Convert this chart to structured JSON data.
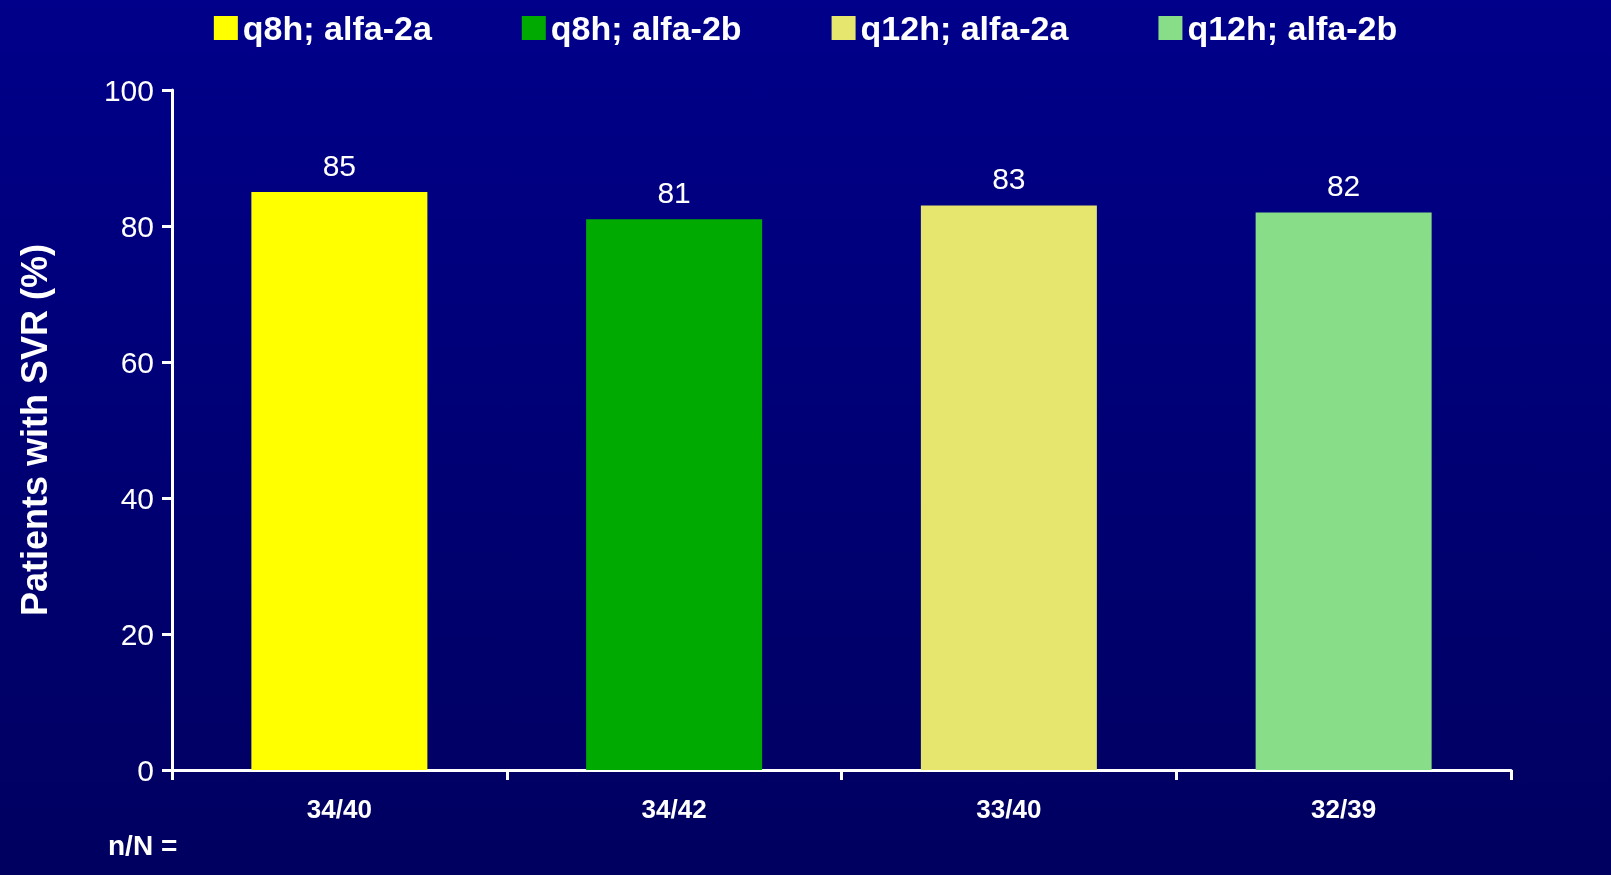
{
  "chart_data": {
    "type": "bar",
    "ylabel": "Patients with SVR (%)",
    "categories": [
      "34/40",
      "34/42",
      "33/40",
      "32/39"
    ],
    "series": [
      {
        "name": "q8h; alfa-2a",
        "color": "#ffff00",
        "values": [
          85,
          null,
          null,
          null
        ]
      },
      {
        "name": "q8h; alfa-2b",
        "color": "#00aa00",
        "values": [
          null,
          81,
          null,
          null
        ]
      },
      {
        "name": "q12h; alfa-2a",
        "color": "#e6e66e",
        "values": [
          null,
          null,
          83,
          null
        ]
      },
      {
        "name": "q12h; alfa-2b",
        "color": "#88dd88",
        "values": [
          null,
          null,
          null,
          82
        ]
      }
    ],
    "ylim": [
      0,
      100
    ],
    "yticks": [
      0,
      20,
      40,
      60,
      80,
      100
    ],
    "data_labels": true,
    "legend": "top",
    "grid": false,
    "annotations": [
      "n/N ="
    ]
  }
}
